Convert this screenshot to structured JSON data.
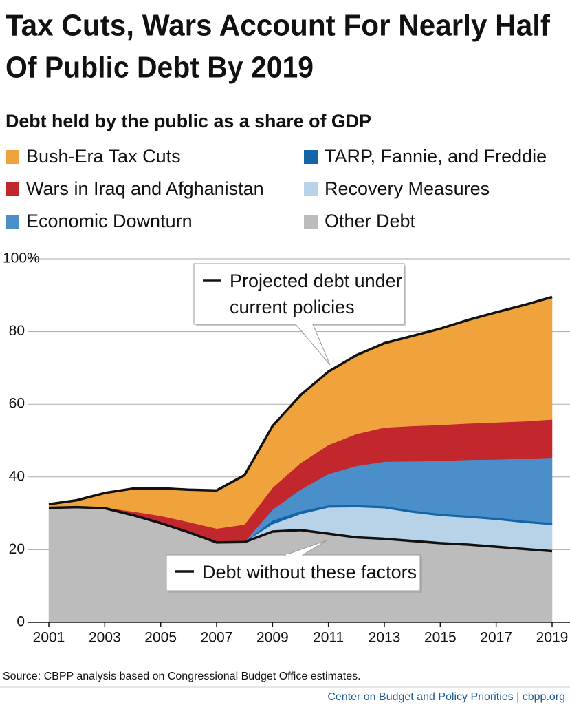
{
  "chart_data": {
    "type": "stacked-area",
    "title": [
      "Tax Cuts, Wars Account For Nearly Half",
      "Of Public Debt By 2019"
    ],
    "subtitle": "Debt held by the public as a share of GDP",
    "x": [
      2001,
      2002,
      2003,
      2004,
      2005,
      2006,
      2007,
      2008,
      2009,
      2010,
      2011,
      2012,
      2013,
      2014,
      2015,
      2016,
      2017,
      2018,
      2019
    ],
    "series": [
      {
        "name": "Bush-Era Tax Cuts",
        "color": "#f0a23c",
        "values": [
          1.0,
          1.9,
          4.0,
          6.3,
          7.6,
          8.9,
          10.5,
          13.6,
          17.0,
          18.7,
          20.2,
          21.7,
          23.2,
          24.8,
          26.5,
          28.5,
          30.3,
          32.0,
          33.7
        ]
      },
      {
        "name": "Wars in Iraq and Afghanistan",
        "color": "#c1272d",
        "values": [
          0,
          0,
          0.2,
          1.0,
          2.0,
          2.8,
          3.8,
          4.8,
          6.0,
          7.3,
          8.0,
          8.8,
          9.4,
          9.7,
          9.9,
          10.0,
          10.2,
          10.3,
          10.5
        ]
      },
      {
        "name": "Economic Downturn",
        "color": "#4a8fca",
        "values": [
          0,
          0,
          0,
          0,
          0,
          0,
          0,
          0,
          3.0,
          5.9,
          8.6,
          10.7,
          12.2,
          13.5,
          14.5,
          15.3,
          16.0,
          17.0,
          17.9
        ]
      },
      {
        "name": "TARP, Fannie, and Freddie",
        "color": "#1464a8",
        "values": [
          0,
          0,
          0,
          0,
          0,
          0,
          0,
          0,
          1.0,
          0.8,
          0.6,
          0.6,
          0.6,
          0.6,
          0.6,
          0.6,
          0.6,
          0.6,
          0.6
        ]
      },
      {
        "name": "Recovery Measures",
        "color": "#b8d3e8",
        "values": [
          0,
          0,
          0,
          0,
          0,
          0,
          0,
          0,
          2.0,
          4.4,
          7.2,
          8.3,
          8.4,
          7.8,
          7.5,
          7.4,
          7.4,
          7.2,
          7.2
        ]
      },
      {
        "name": "Other Debt",
        "color": "#bcbcbc",
        "values": [
          31.5,
          31.7,
          31.4,
          29.5,
          27.3,
          24.8,
          22.0,
          22.1,
          25.0,
          25.4,
          24.4,
          23.4,
          23.0,
          22.4,
          21.8,
          21.4,
          20.8,
          20.2,
          19.6
        ]
      }
    ],
    "xlim": [
      2001,
      2019
    ],
    "xticks": [
      2001,
      2003,
      2005,
      2007,
      2009,
      2011,
      2013,
      2015,
      2017,
      2019
    ],
    "ylim": [
      0,
      100
    ],
    "yticks": [
      0,
      20,
      40,
      60,
      80,
      {
        "value": 100,
        "label": "100%"
      }
    ],
    "grid": true,
    "annotations": [
      {
        "text": [
          "Projected debt under",
          "current policies"
        ]
      },
      {
        "text": [
          "Debt without these factors"
        ]
      }
    ],
    "source": "Source:  CBPP analysis based on Congressional Budget Office estimates.",
    "footer": "Center on Budget and Policy Priorities | cbpp.org"
  }
}
